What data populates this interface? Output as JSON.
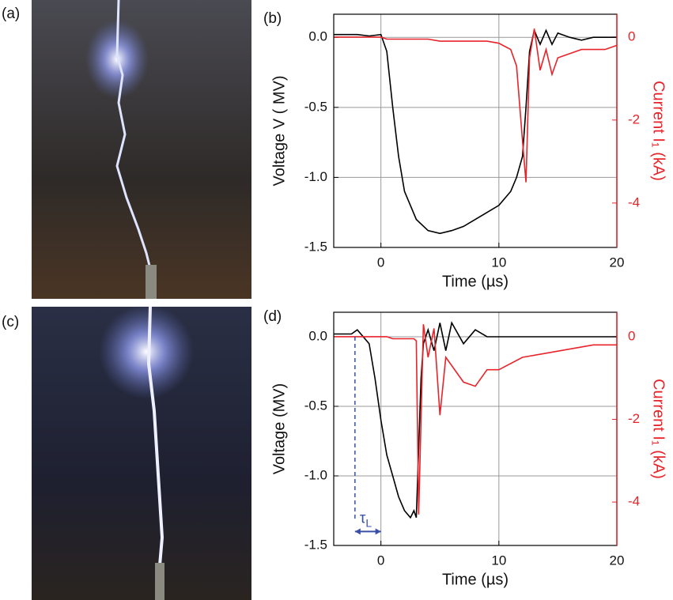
{
  "photo_labels": [
    "(a)",
    "(c)"
  ],
  "chart_data": [
    {
      "type": "line",
      "label": "(b)",
      "xlabel": "Time (µs)",
      "ylabel": "Voltage V ( MV)",
      "y2label": "Current I₁ (kA)",
      "x": [
        -4,
        -3,
        -2,
        -1,
        0,
        0.5,
        1,
        1.5,
        2,
        3,
        4,
        5,
        6,
        7,
        8,
        9,
        10,
        11,
        11.5,
        12,
        12.3,
        12.6,
        13,
        13.5,
        14,
        14.5,
        15,
        16,
        17,
        18,
        19,
        20
      ],
      "xlim": [
        -4,
        20
      ],
      "xticks": [
        0,
        10,
        20
      ],
      "ylim": [
        -1.5,
        0.165
      ],
      "yticks": [
        {
          "value": -1.5,
          "label": "-1.5"
        },
        {
          "value": -1,
          "label": "-1.0"
        },
        {
          "value": -0.5,
          "label": "-0.5"
        },
        {
          "value": 0,
          "label": "0.0"
        }
      ],
      "y2lim": [
        -5.07,
        0.55
      ],
      "y2ticks": [
        -4,
        -2,
        0
      ],
      "grid": true,
      "series": [
        {
          "color": "#000000",
          "values": [
            0.02,
            0.02,
            0.02,
            0.01,
            0.02,
            -0.1,
            -0.5,
            -0.85,
            -1.1,
            -1.3,
            -1.38,
            -1.4,
            -1.38,
            -1.35,
            -1.3,
            -1.25,
            -1.2,
            -1.1,
            -1.0,
            -0.85,
            -0.5,
            -0.1,
            0.05,
            -0.05,
            0.05,
            -0.05,
            0.03,
            0.0,
            -0.02,
            0.0,
            0.0,
            0.0
          ]
        },
        {
          "color": "#e8242a",
          "axis": "y2",
          "values": [
            0,
            0,
            0,
            0,
            0,
            -0.05,
            -0.05,
            -0.05,
            -0.05,
            -0.05,
            -0.05,
            -0.1,
            -0.1,
            -0.1,
            -0.1,
            -0.1,
            -0.15,
            -0.3,
            -0.7,
            -2.5,
            -3.5,
            -0.5,
            0.2,
            -0.8,
            -0.3,
            -0.9,
            -0.5,
            -0.4,
            -0.3,
            -0.3,
            -0.3,
            -0.2
          ]
        }
      ]
    },
    {
      "type": "line",
      "label": "(d)",
      "xlabel": "Time (µs)",
      "ylabel": "Voltage (MV)",
      "y2label": "Current I₁ (kA)",
      "x": [
        -4,
        -3,
        -2.5,
        -2,
        -1.5,
        -1,
        -0.5,
        0,
        0.5,
        1,
        1.5,
        2,
        2.5,
        2.8,
        3,
        3.2,
        3.4,
        3.6,
        4,
        4.5,
        5,
        5.5,
        6,
        7,
        8,
        9,
        10,
        12,
        14,
        16,
        18,
        20
      ],
      "xlim": [
        -4,
        20
      ],
      "xticks": [
        0,
        10,
        20
      ],
      "ylim": [
        -1.5,
        0.176
      ],
      "yticks": [
        {
          "value": -1.5,
          "label": "-1.5"
        },
        {
          "value": -1,
          "label": "-1.0"
        },
        {
          "value": -0.5,
          "label": "-0.5"
        },
        {
          "value": 0,
          "label": "0.0"
        }
      ],
      "y2lim": [
        -5.05,
        0.59
      ],
      "y2ticks": [
        -4,
        -2,
        0
      ],
      "grid": true,
      "annotation": {
        "text": "τ",
        "sub": "L",
        "x": [
          -2.2,
          0
        ],
        "y": -1.32
      },
      "series": [
        {
          "color": "#000000",
          "values": [
            0.02,
            0.02,
            0.02,
            0.05,
            0,
            -0.05,
            -0.3,
            -0.6,
            -0.85,
            -1.0,
            -1.15,
            -1.25,
            -1.3,
            -1.25,
            -1.3,
            -0.8,
            -0.3,
            -0.05,
            0.05,
            -0.1,
            0.1,
            -0.1,
            0.1,
            -0.05,
            0.05,
            0.0,
            0.0,
            0.0,
            0.0,
            0.0,
            0.0,
            0.0
          ]
        },
        {
          "color": "#e8242a",
          "axis": "y2",
          "values": [
            0,
            0,
            0,
            0,
            0,
            0,
            0,
            0,
            0,
            -0.05,
            -0.05,
            -0.05,
            -0.05,
            -0.05,
            -0.1,
            -4.3,
            -2,
            0.3,
            -0.5,
            0.2,
            -1.9,
            -0.5,
            -0.7,
            -1.1,
            -1.2,
            -0.8,
            -0.8,
            -0.5,
            -0.4,
            -0.3,
            -0.2,
            -0.2
          ]
        }
      ]
    }
  ]
}
